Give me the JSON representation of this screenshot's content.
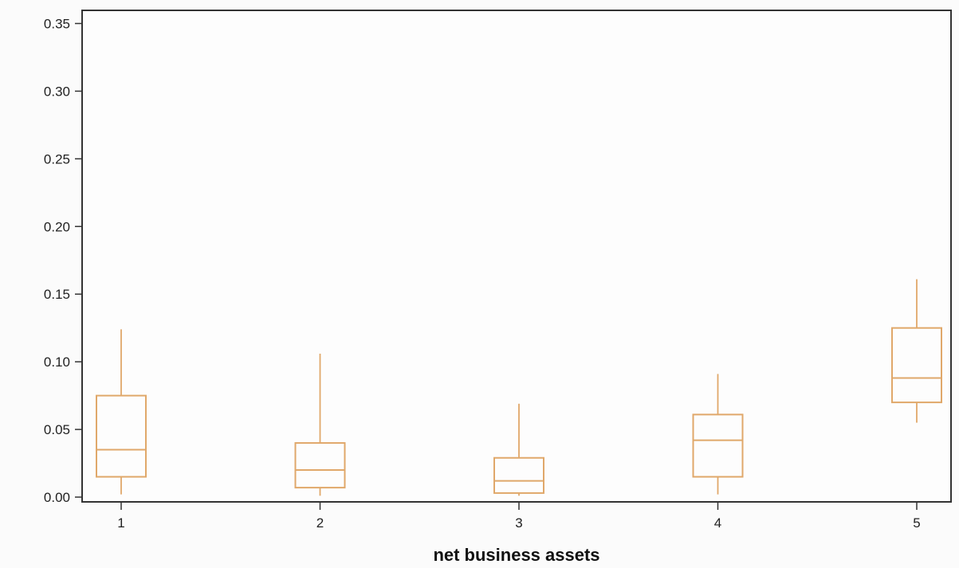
{
  "chart_data": {
    "type": "box",
    "title": "",
    "xlabel": "net business assets",
    "ylabel": "",
    "ylim": [
      0,
      0.35
    ],
    "yticks": [
      "0.00",
      "0.05",
      "0.10",
      "0.15",
      "0.20",
      "0.25",
      "0.30",
      "0.35"
    ],
    "ytick_values": [
      0,
      0.05,
      0.1,
      0.15,
      0.2,
      0.25,
      0.3,
      0.35
    ],
    "categories": [
      "1",
      "2",
      "3",
      "4",
      "5"
    ],
    "grid": false,
    "legend": "none",
    "box_color": "#e0a86a",
    "boxes": [
      {
        "category": "1",
        "whisker_low": 0.002,
        "q1": 0.015,
        "median": 0.035,
        "q3": 0.075,
        "whisker_high": 0.124
      },
      {
        "category": "2",
        "whisker_low": 0.001,
        "q1": 0.007,
        "median": 0.02,
        "q3": 0.04,
        "whisker_high": 0.106
      },
      {
        "category": "3",
        "whisker_low": 0.001,
        "q1": 0.003,
        "median": 0.012,
        "q3": 0.029,
        "whisker_high": 0.069
      },
      {
        "category": "4",
        "whisker_low": 0.002,
        "q1": 0.015,
        "median": 0.042,
        "q3": 0.061,
        "whisker_high": 0.091
      },
      {
        "category": "5",
        "whisker_low": 0.055,
        "q1": 0.07,
        "median": 0.088,
        "q3": 0.125,
        "whisker_high": 0.161
      }
    ]
  }
}
